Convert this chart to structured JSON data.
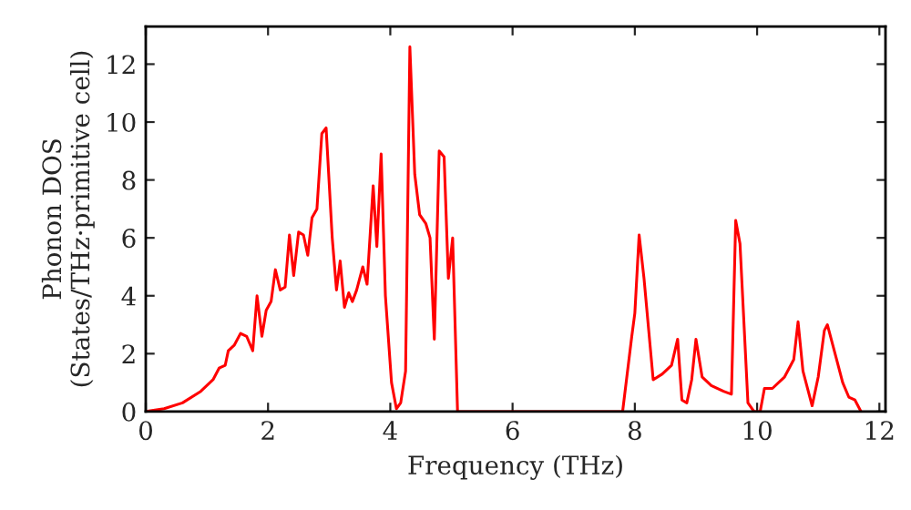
{
  "chart_data": {
    "type": "line",
    "xlabel": "Frequency (THz)",
    "ylabel": "Phonon DOS\n(States/THz·primitive cell)",
    "x": [
      0,
      0.3,
      0.6,
      0.9,
      1.1,
      1.2,
      1.3,
      1.35,
      1.45,
      1.55,
      1.65,
      1.75,
      1.82,
      1.9,
      1.97,
      2.05,
      2.12,
      2.2,
      2.28,
      2.35,
      2.42,
      2.5,
      2.58,
      2.65,
      2.72,
      2.8,
      2.88,
      2.95,
      3.05,
      3.12,
      3.18,
      3.25,
      3.32,
      3.38,
      3.45,
      3.55,
      3.62,
      3.72,
      3.78,
      3.85,
      3.92,
      4.02,
      4.1,
      4.17,
      4.25,
      4.32,
      4.4,
      4.48,
      4.58,
      4.65,
      4.72,
      4.8,
      4.88,
      4.95,
      5.02,
      5.1,
      7.8,
      7.95,
      8.0,
      8.07,
      8.15,
      8.3,
      8.45,
      8.6,
      8.7,
      8.77,
      8.85,
      8.93,
      9.0,
      9.1,
      9.25,
      9.45,
      9.58,
      9.65,
      9.72,
      9.85,
      9.95,
      10.05,
      10.12,
      10.25,
      10.45,
      10.6,
      10.67,
      10.75,
      10.9,
      11.0,
      11.1,
      11.15,
      11.3,
      11.4,
      11.5,
      11.6,
      11.7
    ],
    "series": [
      {
        "color": "#ff0000",
        "values": [
          0,
          0.1,
          0.3,
          0.7,
          1.1,
          1.5,
          1.6,
          2.1,
          2.3,
          2.7,
          2.6,
          2.1,
          4.0,
          2.6,
          3.5,
          3.8,
          4.9,
          4.2,
          4.3,
          6.1,
          4.7,
          6.2,
          6.1,
          5.4,
          6.7,
          7.0,
          9.6,
          9.8,
          6.0,
          4.2,
          5.2,
          3.6,
          4.1,
          3.8,
          4.2,
          5.0,
          4.4,
          7.8,
          5.7,
          8.9,
          4.0,
          1.0,
          0.1,
          0.3,
          1.4,
          12.6,
          8.2,
          6.8,
          6.5,
          6.0,
          2.5,
          9.0,
          8.8,
          4.6,
          6.0,
          0.0,
          0.0,
          2.6,
          3.4,
          6.1,
          4.6,
          1.1,
          1.3,
          1.6,
          2.5,
          0.4,
          0.3,
          1.1,
          2.5,
          1.2,
          0.9,
          0.7,
          0.6,
          6.6,
          5.8,
          0.3,
          0.0,
          0.0,
          0.8,
          0.8,
          1.2,
          1.8,
          3.1,
          1.4,
          0.2,
          1.2,
          2.8,
          3.0,
          1.8,
          1.0,
          0.5,
          0.4,
          0.0
        ]
      }
    ],
    "xlim": [
      0,
      12.1
    ],
    "ylim": [
      0,
      13.3
    ],
    "xticks": [
      0,
      2,
      4,
      6,
      8,
      10,
      12
    ],
    "yticks": [
      0,
      2,
      4,
      6,
      8,
      10,
      12
    ],
    "grid": false
  }
}
